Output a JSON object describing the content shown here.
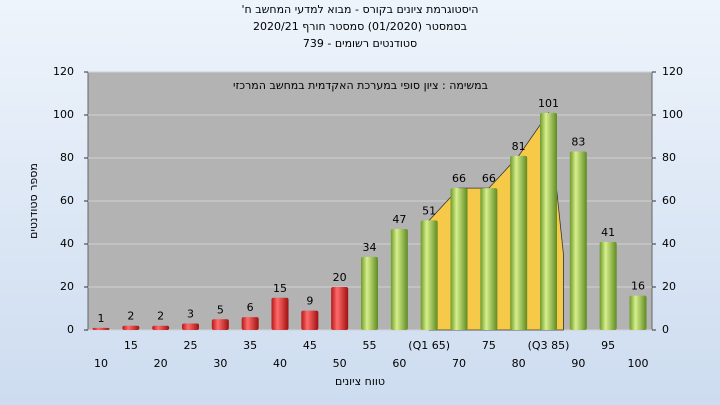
{
  "chart_data": {
    "type": "bar",
    "title": "היסטוגרמת ציונים בקורס - מבוא למדעי המחשב ח'",
    "subtitle": "בסמסטר  (01/2020)  סמסטר חורף  2020/21",
    "subtitle2": "סטודנטים רשומים - 739",
    "annotation": "במשימה : ציון סופי במערכת האקדמית במחשב המרכזי",
    "x_label": "טווח ציונים",
    "y_label": "מספר סטודנטים",
    "categories": [
      "10",
      "15",
      "20",
      "25",
      "30",
      "35",
      "40",
      "45",
      "50",
      "55",
      "60",
      "(Q1 65)",
      "70",
      "75",
      "80",
      "(Q3 85)",
      "90",
      "95",
      "100"
    ],
    "values": [
      1,
      2,
      2,
      3,
      5,
      6,
      15,
      9,
      20,
      34,
      47,
      51,
      66,
      66,
      81,
      101,
      83,
      41,
      16
    ],
    "colors": [
      "red",
      "red",
      "red",
      "red",
      "red",
      "red",
      "red",
      "red",
      "red",
      "green",
      "green",
      "green",
      "green",
      "green",
      "green",
      "green",
      "green",
      "green",
      "green"
    ],
    "ylim": [
      0,
      120
    ],
    "yticks": [
      0,
      20,
      40,
      60,
      80,
      100,
      120
    ],
    "y2lim": [
      0,
      120
    ],
    "y2ticks": [
      0,
      20,
      40,
      60,
      80,
      100,
      120
    ],
    "grid": true
  }
}
